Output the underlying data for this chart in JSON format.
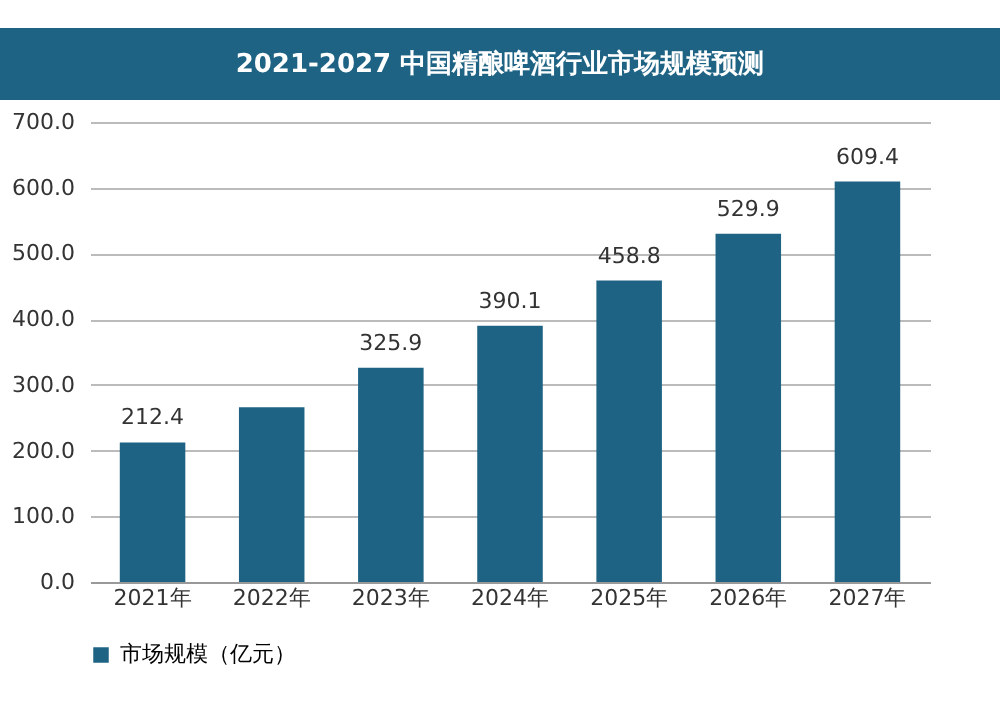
{
  "chart_data": {
    "type": "bar",
    "title": "2021-2027 中国精酿啤酒行业市场规模预测",
    "categories": [
      "2021年",
      "2022年",
      "2023年",
      "2024年",
      "2025年",
      "2026年",
      "2027年"
    ],
    "series": [
      {
        "name": "市场规模（亿元）",
        "color": "#1e6384",
        "values": [
          212.4,
          266,
          325.9,
          390.1,
          458.8,
          529.9,
          609.4
        ]
      }
    ],
    "value_labels": [
      "212.4",
      null,
      "325.9",
      "390.1",
      "458.8",
      "529.9",
      "609.4"
    ],
    "ylim": [
      0,
      700
    ],
    "yticks": [
      {
        "value": 0,
        "label": "0.0"
      },
      {
        "value": 100,
        "label": "100.0"
      },
      {
        "value": 200,
        "label": "200.0"
      },
      {
        "value": 300,
        "label": "300.0"
      },
      {
        "value": 400,
        "label": "400.0"
      },
      {
        "value": 500,
        "label": "500.0"
      },
      {
        "value": 600,
        "label": "600.0"
      },
      {
        "value": 700,
        "label": "700.0"
      }
    ],
    "grid": "y",
    "legend": "bottom"
  }
}
